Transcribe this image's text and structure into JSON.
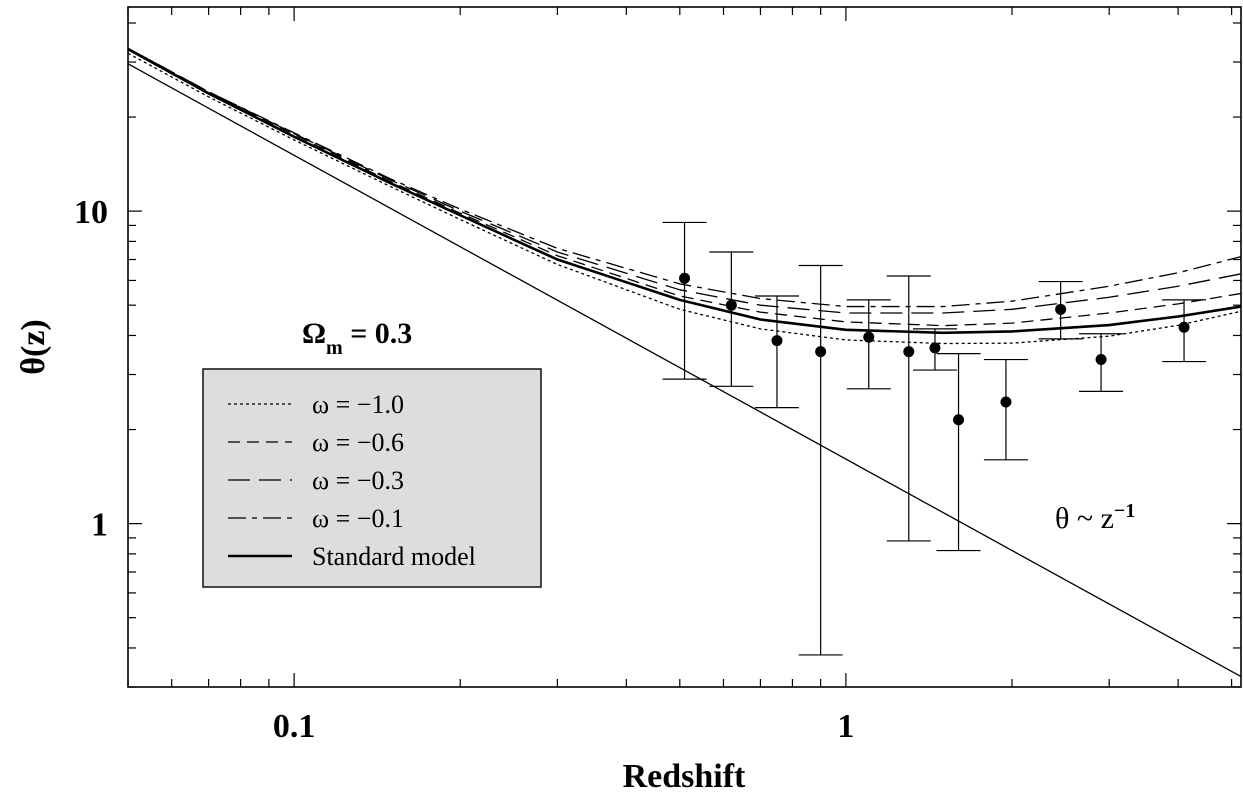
{
  "chart_data": {
    "type": "line",
    "xlabel": "Redshift",
    "ylabel": "θ(z)",
    "xscale": "log",
    "yscale": "log",
    "xlim": [
      0.05,
      5.2
    ],
    "ylim": [
      0.3,
      45
    ],
    "xticks": [
      {
        "value": 0.1,
        "label": "0.1"
      },
      {
        "value": 1,
        "label": "1"
      }
    ],
    "yticks": [
      {
        "value": 1,
        "label": "1"
      },
      {
        "value": 10,
        "label": "10"
      }
    ],
    "grid": false,
    "legend": {
      "placement": "center-left",
      "background": "#dddddd",
      "entries": [
        {
          "label": "ω = −1.0",
          "dash": "3,3",
          "width": 1.3
        },
        {
          "label": "ω = −0.6",
          "dash": "12,7",
          "width": 1.3
        },
        {
          "label": "ω = −0.3",
          "dash": "22,9",
          "width": 1.3
        },
        {
          "label": "ω = −0.1",
          "dash": "18,6,5,6",
          "width": 1.3
        },
        {
          "label": "Standard model",
          "dash": "",
          "width": 2.6
        }
      ]
    },
    "annotations": {
      "omega_symbol": "Ω",
      "omega_sub": "m",
      "omega_value": " = 0.3",
      "power_law_prefix": "θ ~ z",
      "power_law_sup": "−1"
    },
    "series": [
      {
        "name": "ω = −1.0",
        "dash": "3,3",
        "width": 1.3,
        "x": [
          0.05,
          0.07,
          0.1,
          0.15,
          0.2,
          0.3,
          0.5,
          0.7,
          1.0,
          1.5,
          2.0,
          3.0,
          4.0,
          5.2
        ],
        "y": [
          32,
          23.2,
          16.9,
          11.95,
          9.4,
          6.75,
          4.85,
          4.2,
          3.87,
          3.77,
          3.78,
          3.98,
          4.31,
          4.78
        ]
      },
      {
        "name": "ω = −0.6",
        "dash": "12,7",
        "width": 1.3,
        "x": [
          0.05,
          0.07,
          0.1,
          0.15,
          0.2,
          0.3,
          0.5,
          0.7,
          1.0,
          1.5,
          2.0,
          3.0,
          4.0,
          5.2
        ],
        "y": [
          33.2,
          24,
          17.6,
          12.4,
          9.85,
          7.2,
          5.35,
          4.75,
          4.42,
          4.3,
          4.38,
          4.72,
          5.05,
          5.45
        ]
      },
      {
        "name": "ω = −0.3",
        "dash": "22,9",
        "width": 1.3,
        "x": [
          0.05,
          0.07,
          0.1,
          0.15,
          0.2,
          0.3,
          0.5,
          0.7,
          1.0,
          1.5,
          2.0,
          3.0,
          4.0,
          5.2
        ],
        "y": [
          33.2,
          24.1,
          17.7,
          12.55,
          10.0,
          7.4,
          5.6,
          5.0,
          4.72,
          4.72,
          4.85,
          5.3,
          5.75,
          6.3
        ]
      },
      {
        "name": "ω = −0.1",
        "dash": "18,6,5,6",
        "width": 1.3,
        "x": [
          0.05,
          0.07,
          0.1,
          0.15,
          0.2,
          0.3,
          0.5,
          0.7,
          1.0,
          1.5,
          2.0,
          3.0,
          4.0,
          5.2
        ],
        "y": [
          33.2,
          24.1,
          17.8,
          12.65,
          10.15,
          7.6,
          5.85,
          5.25,
          4.95,
          4.95,
          5.15,
          5.75,
          6.35,
          7.15
        ]
      },
      {
        "name": "Standard model",
        "dash": "",
        "width": 2.6,
        "x": [
          0.05,
          0.07,
          0.1,
          0.15,
          0.2,
          0.3,
          0.5,
          0.7,
          1.0,
          1.5,
          2.0,
          3.0,
          4.0,
          5.2
        ],
        "y": [
          33,
          23.8,
          17.3,
          12.25,
          9.7,
          7.0,
          5.2,
          4.5,
          4.17,
          4.08,
          4.12,
          4.32,
          4.6,
          4.95
        ]
      },
      {
        "name": "θ ~ z−1",
        "dash": "",
        "width": 1.3,
        "x": [
          0.05,
          5.2
        ],
        "y": [
          29.6,
          0.324
        ]
      }
    ],
    "points": [
      {
        "x": 0.51,
        "y": 6.1,
        "ylo": 2.9,
        "yhi": 9.2
      },
      {
        "x": 0.62,
        "y": 5.0,
        "ylo": 2.75,
        "yhi": 7.4
      },
      {
        "x": 0.75,
        "y": 3.85,
        "ylo": 2.35,
        "yhi": 5.35
      },
      {
        "x": 0.9,
        "y": 3.55,
        "ylo": 0.38,
        "yhi": 6.7
      },
      {
        "x": 1.1,
        "y": 3.95,
        "ylo": 2.7,
        "yhi": 5.2
      },
      {
        "x": 1.3,
        "y": 3.55,
        "ylo": 0.88,
        "yhi": 6.2
      },
      {
        "x": 1.45,
        "y": 3.65,
        "ylo": 3.1,
        "yhi": 4.2
      },
      {
        "x": 1.6,
        "y": 2.15,
        "ylo": 0.82,
        "yhi": 3.5
      },
      {
        "x": 1.95,
        "y": 2.45,
        "ylo": 1.6,
        "yhi": 3.35
      },
      {
        "x": 2.45,
        "y": 4.85,
        "ylo": 3.9,
        "yhi": 5.95
      },
      {
        "x": 2.9,
        "y": 3.35,
        "ylo": 2.65,
        "yhi": 4.05
      },
      {
        "x": 4.1,
        "y": 4.25,
        "ylo": 3.3,
        "yhi": 5.2
      }
    ]
  }
}
